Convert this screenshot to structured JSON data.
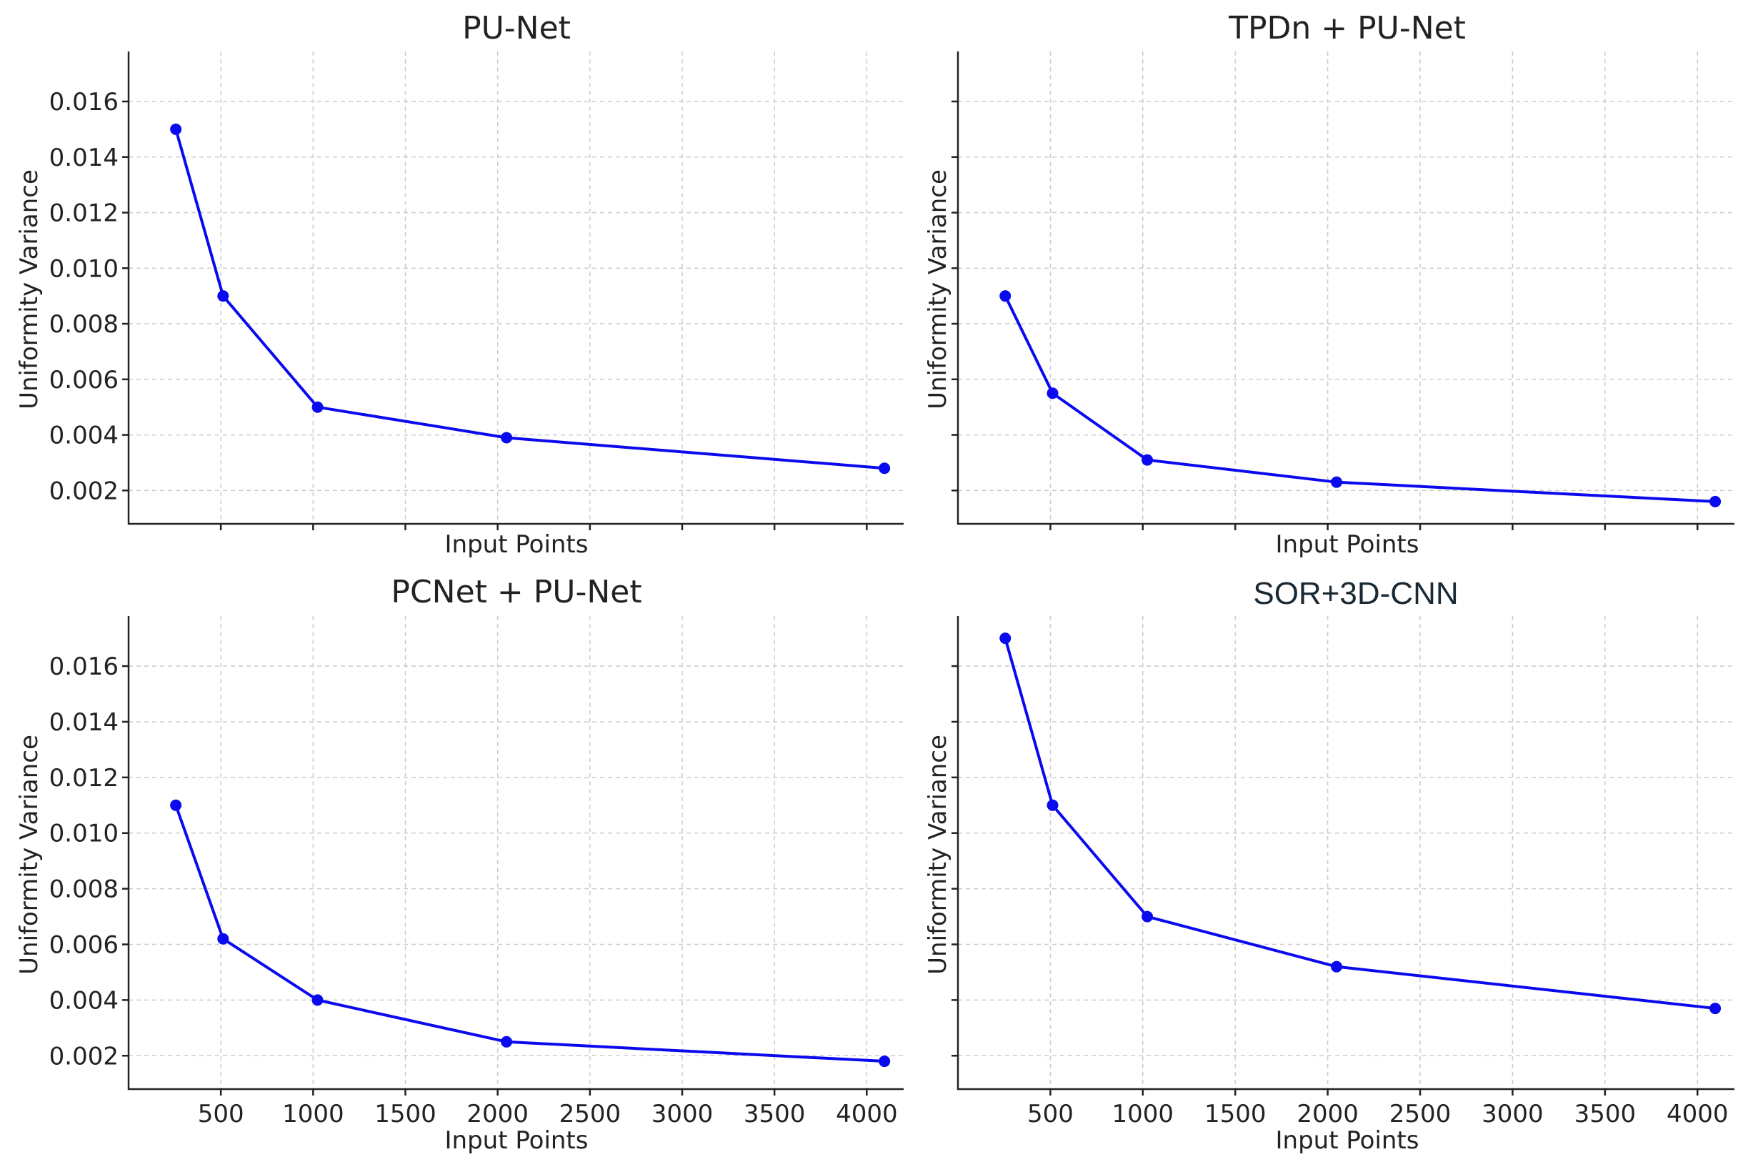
{
  "chart_data": [
    {
      "type": "line",
      "title": "PU-Net",
      "xlabel": "Input Points",
      "ylabel": "Uniformity Variance",
      "x": [
        256,
        512,
        1024,
        2048,
        4096
      ],
      "series": [
        {
          "name": "PU-Net",
          "values": [
            0.015,
            0.009,
            0.005,
            0.0039,
            0.0028
          ],
          "color": "#0a0aef"
        }
      ],
      "xlim": [
        0,
        4200
      ],
      "ylim": [
        0.0008,
        0.0178
      ],
      "xticks": [
        500,
        1000,
        1500,
        2000,
        2500,
        3000,
        3500,
        4000
      ],
      "yticks": [
        0.002,
        0.004,
        0.006,
        0.008,
        0.01,
        0.012,
        0.014,
        0.016
      ],
      "ytick_labels": [
        "0.002",
        "0.004",
        "0.006",
        "0.008",
        "0.010",
        "0.012",
        "0.014",
        "0.016"
      ],
      "show_xtick_labels": false,
      "show_ytick_labels": true,
      "grid": true
    },
    {
      "type": "line",
      "title": "TPDn + PU-Net",
      "xlabel": "Input Points",
      "ylabel": "Uniformity Variance",
      "x": [
        256,
        512,
        1024,
        2048,
        4096
      ],
      "series": [
        {
          "name": "TPDn + PU-Net",
          "values": [
            0.009,
            0.0055,
            0.0031,
            0.0023,
            0.0016
          ],
          "color": "#0a0aef"
        }
      ],
      "xlim": [
        0,
        4200
      ],
      "ylim": [
        0.0008,
        0.0178
      ],
      "xticks": [
        500,
        1000,
        1500,
        2000,
        2500,
        3000,
        3500,
        4000
      ],
      "yticks": [
        0.002,
        0.004,
        0.006,
        0.008,
        0.01,
        0.012,
        0.014,
        0.016
      ],
      "show_xtick_labels": false,
      "show_ytick_labels": false,
      "grid": true
    },
    {
      "type": "line",
      "title": "PCNet + PU-Net",
      "xlabel": "Input Points",
      "ylabel": "Uniformity Variance",
      "x": [
        256,
        512,
        1024,
        2048,
        4096
      ],
      "series": [
        {
          "name": "PCNet + PU-Net",
          "values": [
            0.011,
            0.0062,
            0.004,
            0.0025,
            0.0018
          ],
          "color": "#0a0aef"
        }
      ],
      "xlim": [
        0,
        4200
      ],
      "ylim": [
        0.0008,
        0.0178
      ],
      "xticks": [
        500,
        1000,
        1500,
        2000,
        2500,
        3000,
        3500,
        4000
      ],
      "xtick_labels": [
        "500",
        "1000",
        "1500",
        "2000",
        "2500",
        "3000",
        "3500",
        "4000"
      ],
      "yticks": [
        0.002,
        0.004,
        0.006,
        0.008,
        0.01,
        0.012,
        0.014,
        0.016
      ],
      "ytick_labels": [
        "0.002",
        "0.004",
        "0.006",
        "0.008",
        "0.010",
        "0.012",
        "0.014",
        "0.016"
      ],
      "show_xtick_labels": true,
      "show_ytick_labels": true,
      "grid": true
    },
    {
      "type": "line",
      "title": "SOR+3D-CNN",
      "xlabel": "Input Points",
      "ylabel": "Uniformity Variance",
      "x": [
        256,
        512,
        1024,
        2048,
        4096
      ],
      "series": [
        {
          "name": "SOR+3D-CNN",
          "values": [
            0.017,
            0.011,
            0.007,
            0.0052,
            0.0037
          ],
          "color": "#0a0aef"
        }
      ],
      "xlim": [
        0,
        4200
      ],
      "ylim": [
        0.0008,
        0.0178
      ],
      "xticks": [
        500,
        1000,
        1500,
        2000,
        2500,
        3000,
        3500,
        4000
      ],
      "xtick_labels": [
        "500",
        "1000",
        "1500",
        "2000",
        "2500",
        "3000",
        "3500",
        "4000"
      ],
      "yticks": [
        0.002,
        0.004,
        0.006,
        0.008,
        0.01,
        0.012,
        0.014,
        0.016
      ],
      "show_xtick_labels": true,
      "show_ytick_labels": false,
      "grid": true
    }
  ]
}
